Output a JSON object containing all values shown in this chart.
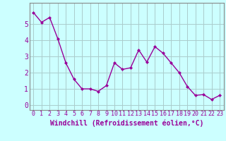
{
  "x": [
    0,
    1,
    2,
    3,
    4,
    5,
    6,
    7,
    8,
    9,
    10,
    11,
    12,
    13,
    14,
    15,
    16,
    17,
    18,
    19,
    20,
    21,
    22,
    23
  ],
  "y": [
    5.7,
    5.1,
    5.4,
    4.1,
    2.6,
    1.6,
    1.0,
    1.0,
    0.85,
    1.2,
    2.6,
    2.2,
    2.3,
    3.4,
    2.65,
    3.6,
    3.2,
    2.6,
    2.0,
    1.15,
    0.6,
    0.65,
    0.35,
    0.6
  ],
  "line_color": "#990099",
  "marker": "D",
  "marker_size": 2.0,
  "line_width": 1.0,
  "background_color": "#ccffff",
  "grid_color": "#aacccc",
  "xlabel": "Windchill (Refroidissement éolien,°C)",
  "xlabel_color": "#990099",
  "tick_color": "#990099",
  "xlim": [
    -0.5,
    23.5
  ],
  "ylim": [
    -0.3,
    6.3
  ],
  "yticks": [
    0,
    1,
    2,
    3,
    4,
    5
  ],
  "xticks": [
    0,
    1,
    2,
    3,
    4,
    5,
    6,
    7,
    8,
    9,
    10,
    11,
    12,
    13,
    14,
    15,
    16,
    17,
    18,
    19,
    20,
    21,
    22,
    23
  ],
  "border_color": "#888888",
  "tick_fontsize": 6,
  "xlabel_fontsize": 7
}
